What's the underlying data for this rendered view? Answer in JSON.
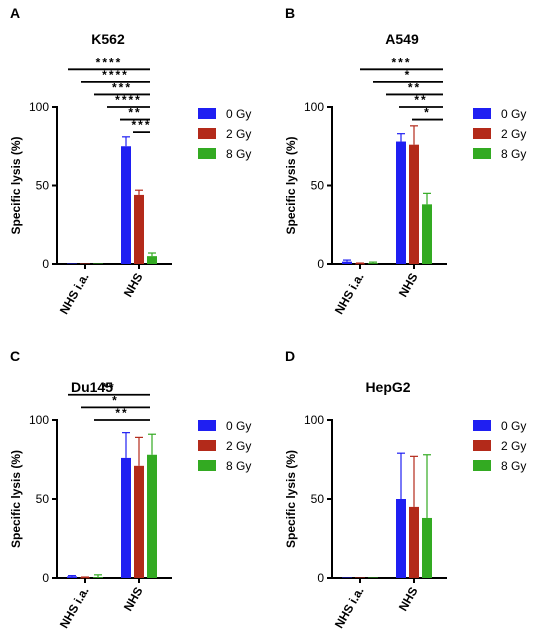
{
  "colors": {
    "0 Gy": "#1f1ff2",
    "2 Gy": "#b32a1a",
    "8 Gy": "#33aa22"
  },
  "chart_data": [
    {
      "panel": "A",
      "type": "bar",
      "title": "K562",
      "ylabel": "Specific lysis (%)",
      "ylim": [
        0,
        100
      ],
      "yticks": [
        "0",
        "50",
        "100"
      ],
      "categories": [
        "NHS i.a.",
        "NHS"
      ],
      "series": [
        {
          "name": "0 Gy",
          "values": [
            0,
            75
          ],
          "errors": [
            0,
            6
          ]
        },
        {
          "name": "2 Gy",
          "values": [
            0,
            44
          ],
          "errors": [
            0,
            3
          ]
        },
        {
          "name": "8 Gy",
          "values": [
            0,
            5
          ],
          "errors": [
            0,
            2
          ]
        }
      ],
      "significance": [
        {
          "label": "****",
          "level": 124
        },
        {
          "label": "****",
          "level": 116
        },
        {
          "label": "***",
          "level": 108
        },
        {
          "label": "****",
          "level": 100
        },
        {
          "label": "**",
          "level": 92
        },
        {
          "label": "***",
          "level": 84
        }
      ],
      "legend": "right"
    },
    {
      "panel": "B",
      "type": "bar",
      "title": "A549",
      "ylabel": "Specific lysis (%)",
      "ylim": [
        0,
        100
      ],
      "yticks": [
        "0",
        "50",
        "100"
      ],
      "categories": [
        "NHS i.a.",
        "NHS"
      ],
      "series": [
        {
          "name": "0 Gy",
          "values": [
            1.5,
            78
          ],
          "errors": [
            1,
            5
          ]
        },
        {
          "name": "2 Gy",
          "values": [
            0.3,
            76
          ],
          "errors": [
            0.3,
            12
          ]
        },
        {
          "name": "8 Gy",
          "values": [
            0.5,
            38
          ],
          "errors": [
            0.7,
            7
          ]
        }
      ],
      "significance": [
        {
          "label": "***",
          "level": 124
        },
        {
          "label": "*",
          "level": 116
        },
        {
          "label": "**",
          "level": 108
        },
        {
          "label": "**",
          "level": 100
        },
        {
          "label": "*",
          "level": 92
        }
      ],
      "legend": "right"
    },
    {
      "panel": "C",
      "type": "bar",
      "title": "Du145",
      "ylabel": "Specific lysis (%)",
      "ylim": [
        0,
        100
      ],
      "yticks": [
        "0",
        "50",
        "100"
      ],
      "categories": [
        "NHS i.a.",
        "NHS"
      ],
      "series": [
        {
          "name": "0 Gy",
          "values": [
            1,
            76
          ],
          "errors": [
            0.5,
            16
          ]
        },
        {
          "name": "2 Gy",
          "values": [
            0.3,
            71
          ],
          "errors": [
            0.3,
            18
          ]
        },
        {
          "name": "8 Gy",
          "values": [
            0.5,
            78
          ],
          "errors": [
            1.5,
            13
          ]
        }
      ],
      "significance": [
        {
          "label": "**",
          "level": 116
        },
        {
          "label": "*",
          "level": 108
        },
        {
          "label": "**",
          "level": 100
        }
      ],
      "legend": "right"
    },
    {
      "panel": "D",
      "type": "bar",
      "title": "HepG2",
      "ylabel": "Specific lysis (%)",
      "ylim": [
        0,
        100
      ],
      "yticks": [
        "0",
        "50",
        "100"
      ],
      "categories": [
        "NHS i.a.",
        "NHS"
      ],
      "series": [
        {
          "name": "0 Gy",
          "values": [
            0,
            50
          ],
          "errors": [
            0,
            29
          ]
        },
        {
          "name": "2 Gy",
          "values": [
            0,
            45
          ],
          "errors": [
            0,
            32
          ]
        },
        {
          "name": "8 Gy",
          "values": [
            0,
            38
          ],
          "errors": [
            0,
            40
          ]
        }
      ],
      "significance": [],
      "legend": "right"
    }
  ]
}
